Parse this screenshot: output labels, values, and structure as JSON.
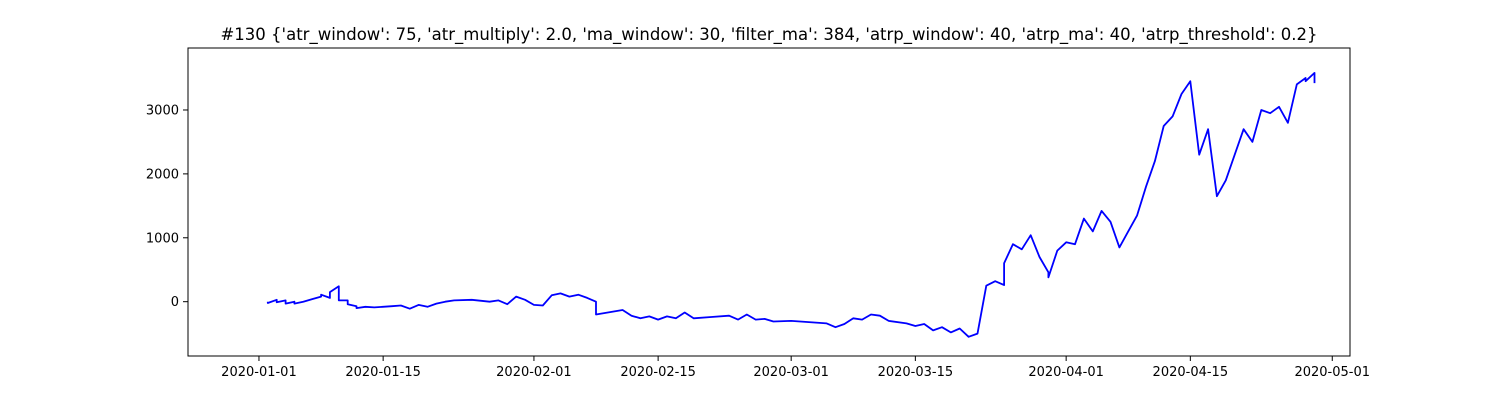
{
  "chart_data": {
    "type": "line",
    "title": "#130 {'atr_window': 75, 'atr_multiply': 2.0, 'ma_window': 30, 'filter_ma': 384, 'atrp_window': 40, 'atrp_ma': 40, 'atrp_threshold': 0.2}",
    "xlabel": "",
    "ylabel": "",
    "x_type": "date",
    "xlim": [
      "2019-12-24",
      "2020-05-03"
    ],
    "ylim": [
      -850,
      3970
    ],
    "x_ticks": [
      "2020-01-01",
      "2020-01-15",
      "2020-02-01",
      "2020-02-15",
      "2020-03-01",
      "2020-03-15",
      "2020-04-01",
      "2020-04-15",
      "2020-05-01"
    ],
    "y_ticks": [
      0,
      1000,
      2000,
      3000
    ],
    "grid": false,
    "legend": "none",
    "series": [
      {
        "color": "#0000ff",
        "points": [
          [
            "2020-01-02",
            0
          ],
          [
            "2020-01-02",
            -20
          ],
          [
            "2020-01-03",
            30
          ],
          [
            "2020-01-03",
            -10
          ],
          [
            "2020-01-04",
            20
          ],
          [
            "2020-01-04",
            -30
          ],
          [
            "2020-01-05",
            0
          ],
          [
            "2020-01-05",
            -30
          ],
          [
            "2020-01-06",
            0
          ],
          [
            "2020-01-07",
            40
          ],
          [
            "2020-01-08",
            80
          ],
          [
            "2020-01-08",
            110
          ],
          [
            "2020-01-09",
            60
          ],
          [
            "2020-01-09",
            150
          ],
          [
            "2020-01-10",
            240
          ],
          [
            "2020-01-10",
            20
          ],
          [
            "2020-01-11",
            20
          ],
          [
            "2020-01-11",
            -40
          ],
          [
            "2020-01-12",
            -70
          ],
          [
            "2020-01-12",
            -100
          ],
          [
            "2020-01-13",
            -80
          ],
          [
            "2020-01-14",
            -90
          ],
          [
            "2020-01-16",
            -70
          ],
          [
            "2020-01-17",
            -60
          ],
          [
            "2020-01-18",
            -110
          ],
          [
            "2020-01-19",
            -50
          ],
          [
            "2020-01-20",
            -80
          ],
          [
            "2020-01-21",
            -30
          ],
          [
            "2020-01-22",
            0
          ],
          [
            "2020-01-23",
            20
          ],
          [
            "2020-01-25",
            30
          ],
          [
            "2020-01-27",
            0
          ],
          [
            "2020-01-28",
            20
          ],
          [
            "2020-01-29",
            -40
          ],
          [
            "2020-01-30",
            80
          ],
          [
            "2020-01-31",
            30
          ],
          [
            "2020-02-01",
            -50
          ],
          [
            "2020-02-02",
            -60
          ],
          [
            "2020-02-03",
            100
          ],
          [
            "2020-02-04",
            130
          ],
          [
            "2020-02-05",
            80
          ],
          [
            "2020-02-06",
            110
          ],
          [
            "2020-02-07",
            60
          ],
          [
            "2020-02-08",
            0
          ],
          [
            "2020-02-08",
            -200
          ],
          [
            "2020-02-11",
            -130
          ],
          [
            "2020-02-12",
            -220
          ],
          [
            "2020-02-13",
            -260
          ],
          [
            "2020-02-14",
            -230
          ],
          [
            "2020-02-15",
            -280
          ],
          [
            "2020-02-16",
            -230
          ],
          [
            "2020-02-17",
            -260
          ],
          [
            "2020-02-18",
            -170
          ],
          [
            "2020-02-19",
            -260
          ],
          [
            "2020-02-21",
            -240
          ],
          [
            "2020-02-23",
            -220
          ],
          [
            "2020-02-24",
            -280
          ],
          [
            "2020-02-25",
            -200
          ],
          [
            "2020-02-26",
            -280
          ],
          [
            "2020-02-27",
            -270
          ],
          [
            "2020-02-28",
            -310
          ],
          [
            "2020-03-01",
            -300
          ],
          [
            "2020-03-03",
            -320
          ],
          [
            "2020-03-05",
            -340
          ],
          [
            "2020-03-06",
            -400
          ],
          [
            "2020-03-07",
            -350
          ],
          [
            "2020-03-08",
            -260
          ],
          [
            "2020-03-09",
            -280
          ],
          [
            "2020-03-10",
            -200
          ],
          [
            "2020-03-11",
            -220
          ],
          [
            "2020-03-12",
            -300
          ],
          [
            "2020-03-14",
            -340
          ],
          [
            "2020-03-15",
            -380
          ],
          [
            "2020-03-16",
            -350
          ],
          [
            "2020-03-17",
            -450
          ],
          [
            "2020-03-18",
            -400
          ],
          [
            "2020-03-19",
            -480
          ],
          [
            "2020-03-20",
            -420
          ],
          [
            "2020-03-21",
            -550
          ],
          [
            "2020-03-22",
            -500
          ],
          [
            "2020-03-23",
            250
          ],
          [
            "2020-03-24",
            320
          ],
          [
            "2020-03-25",
            260
          ],
          [
            "2020-03-25",
            600
          ],
          [
            "2020-03-26",
            900
          ],
          [
            "2020-03-27",
            820
          ],
          [
            "2020-03-28",
            1040
          ],
          [
            "2020-03-29",
            700
          ],
          [
            "2020-03-30",
            460
          ],
          [
            "2020-03-30",
            380
          ],
          [
            "2020-03-31",
            800
          ],
          [
            "2020-04-01",
            930
          ],
          [
            "2020-04-02",
            900
          ],
          [
            "2020-04-03",
            1300
          ],
          [
            "2020-04-04",
            1100
          ],
          [
            "2020-04-05",
            1420
          ],
          [
            "2020-04-06",
            1250
          ],
          [
            "2020-04-07",
            850
          ],
          [
            "2020-04-08",
            1100
          ],
          [
            "2020-04-09",
            1350
          ],
          [
            "2020-04-10",
            1800
          ],
          [
            "2020-04-11",
            2200
          ],
          [
            "2020-04-12",
            2750
          ],
          [
            "2020-04-13",
            2900
          ],
          [
            "2020-04-14",
            3250
          ],
          [
            "2020-04-15",
            3450
          ],
          [
            "2020-04-16",
            2300
          ],
          [
            "2020-04-17",
            2700
          ],
          [
            "2020-04-18",
            1650
          ],
          [
            "2020-04-19",
            1900
          ],
          [
            "2020-04-20",
            2300
          ],
          [
            "2020-04-21",
            2700
          ],
          [
            "2020-04-22",
            2500
          ],
          [
            "2020-04-23",
            3000
          ],
          [
            "2020-04-24",
            2950
          ],
          [
            "2020-04-25",
            3050
          ],
          [
            "2020-04-26",
            2800
          ],
          [
            "2020-04-27",
            3400
          ],
          [
            "2020-04-28",
            3500
          ],
          [
            "2020-04-28",
            3450
          ],
          [
            "2020-04-29",
            3580
          ],
          [
            "2020-04-29",
            3420
          ]
        ]
      }
    ]
  }
}
